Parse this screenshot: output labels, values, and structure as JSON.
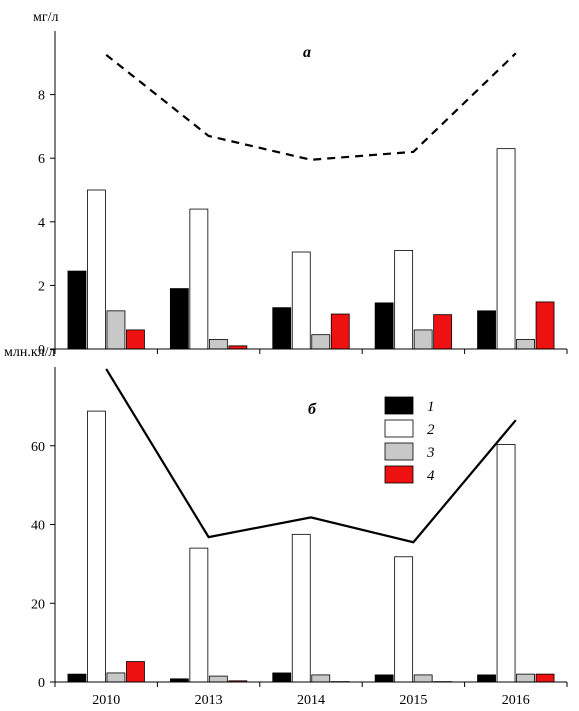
{
  "chart_data": [
    {
      "type": "bar",
      "panel_label": "а",
      "unit_label": "мг/л",
      "categories": [
        "2010",
        "2013",
        "2014",
        "2015",
        "2016"
      ],
      "ylim": [
        0,
        10
      ],
      "yticks": [
        "0",
        "2",
        "4",
        "6",
        "8"
      ],
      "series": [
        {
          "name": "1",
          "color": "#000000",
          "values": [
            2.45,
            1.9,
            1.3,
            1.45,
            1.2
          ]
        },
        {
          "name": "2",
          "color": "#ffffff",
          "values": [
            5.0,
            4.4,
            3.05,
            3.1,
            6.3
          ]
        },
        {
          "name": "3",
          "color": "#c8c8c8",
          "values": [
            1.2,
            0.3,
            0.45,
            0.6,
            0.3
          ]
        },
        {
          "name": "4",
          "color": "#ee1111",
          "values": [
            0.6,
            0.1,
            1.1,
            1.08,
            1.48
          ]
        }
      ],
      "line": {
        "style": "dashed",
        "values": [
          9.25,
          6.7,
          5.95,
          6.2,
          9.3
        ]
      }
    },
    {
      "type": "bar",
      "panel_label": "б",
      "unit_label": "млн.кл/л",
      "categories": [
        "2010",
        "2013",
        "2014",
        "2015",
        "2016"
      ],
      "ylim": [
        0,
        80
      ],
      "yticks": [
        "0",
        "20",
        "40",
        "60"
      ],
      "series": [
        {
          "name": "1",
          "color": "#000000",
          "values": [
            2.0,
            0.8,
            2.3,
            1.8,
            1.8
          ]
        },
        {
          "name": "2",
          "color": "#ffffff",
          "values": [
            68.8,
            34.0,
            37.5,
            31.8,
            60.3
          ]
        },
        {
          "name": "3",
          "color": "#c8c8c8",
          "values": [
            2.3,
            1.5,
            1.8,
            1.8,
            2.0
          ]
        },
        {
          "name": "4",
          "color": "#ee1111",
          "values": [
            5.2,
            0.3,
            0.1,
            0.1,
            2.0
          ]
        }
      ],
      "line": {
        "style": "solid",
        "values": [
          79.5,
          36.8,
          41.8,
          35.5,
          66.5
        ]
      }
    }
  ],
  "legend": {
    "items": [
      {
        "label": "1",
        "color": "#000000"
      },
      {
        "label": "2",
        "color": "#ffffff"
      },
      {
        "label": "3",
        "color": "#c8c8c8"
      },
      {
        "label": "4",
        "color": "#ee1111"
      }
    ]
  }
}
